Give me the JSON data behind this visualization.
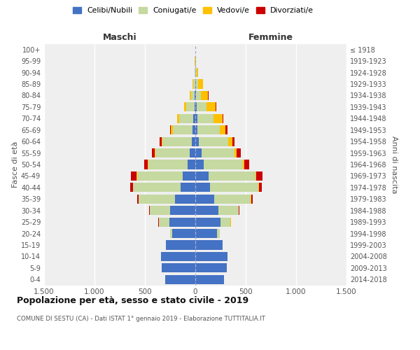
{
  "age_groups": [
    "0-4",
    "5-9",
    "10-14",
    "15-19",
    "20-24",
    "25-29",
    "30-34",
    "35-39",
    "40-44",
    "45-49",
    "50-54",
    "55-59",
    "60-64",
    "65-69",
    "70-74",
    "75-79",
    "80-84",
    "85-89",
    "90-94",
    "95-99",
    "100+"
  ],
  "birth_years": [
    "2014-2018",
    "2009-2013",
    "2004-2008",
    "1999-2003",
    "1994-1998",
    "1989-1993",
    "1984-1988",
    "1979-1983",
    "1974-1978",
    "1969-1973",
    "1964-1968",
    "1959-1963",
    "1954-1958",
    "1949-1953",
    "1944-1948",
    "1939-1943",
    "1934-1938",
    "1929-1933",
    "1924-1928",
    "1919-1923",
    "≤ 1918"
  ],
  "males": {
    "celibi": [
      300,
      330,
      340,
      290,
      230,
      260,
      250,
      200,
      145,
      125,
      75,
      55,
      35,
      25,
      18,
      10,
      5,
      3,
      2,
      1,
      0
    ],
    "coniugati": [
      0,
      0,
      0,
      2,
      20,
      100,
      200,
      360,
      470,
      450,
      390,
      340,
      290,
      200,
      140,
      80,
      35,
      15,
      5,
      2,
      0
    ],
    "vedovi": [
      0,
      0,
      0,
      0,
      1,
      2,
      2,
      2,
      3,
      5,
      5,
      5,
      8,
      15,
      20,
      20,
      15,
      8,
      3,
      1,
      0
    ],
    "divorziati": [
      0,
      0,
      0,
      0,
      2,
      3,
      5,
      15,
      25,
      60,
      35,
      30,
      20,
      10,
      5,
      3,
      1,
      0,
      0,
      0,
      0
    ]
  },
  "females": {
    "nubili": [
      285,
      310,
      320,
      270,
      215,
      250,
      230,
      185,
      145,
      135,
      80,
      60,
      35,
      22,
      18,
      12,
      8,
      5,
      3,
      2,
      0
    ],
    "coniugate": [
      0,
      0,
      0,
      3,
      25,
      100,
      200,
      365,
      480,
      460,
      390,
      330,
      290,
      220,
      165,
      100,
      50,
      20,
      8,
      2,
      0
    ],
    "vedove": [
      0,
      0,
      0,
      0,
      1,
      2,
      3,
      5,
      8,
      10,
      15,
      20,
      40,
      60,
      85,
      90,
      70,
      50,
      20,
      3,
      1
    ],
    "divorziate": [
      0,
      0,
      0,
      0,
      2,
      3,
      5,
      15,
      30,
      65,
      50,
      40,
      25,
      15,
      8,
      4,
      2,
      1,
      0,
      0,
      0
    ]
  },
  "colors": {
    "celibi": "#4472c4",
    "coniugati": "#c5d9a0",
    "vedovi": "#ffc000",
    "divorziati": "#cc0000"
  },
  "xlim": 1500,
  "title": "Popolazione per età, sesso e stato civile - 2019",
  "subtitle": "COMUNE DI SESTU (CA) - Dati ISTAT 1° gennaio 2019 - Elaborazione TUTTITALIA.IT",
  "ylabel_left": "Fasce di età",
  "ylabel_right": "Anni di nascita",
  "xlabel_maschi": "Maschi",
  "xlabel_femmine": "Femmine",
  "legend_labels": [
    "Celibi/Nubili",
    "Coniugati/e",
    "Vedovi/e",
    "Divorziati/e"
  ],
  "xtick_values": [
    -1500,
    -1000,
    -500,
    0,
    500,
    1000,
    1500
  ],
  "xtick_labels": [
    "1.500",
    "1.000",
    "500",
    "0",
    "500",
    "1.000",
    "1.500"
  ],
  "bg_color": "#efefef"
}
